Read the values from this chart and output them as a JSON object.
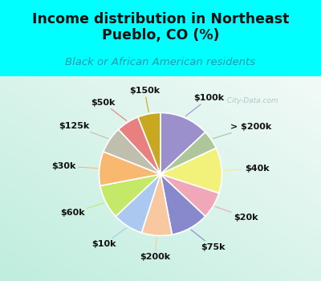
{
  "title": "Income distribution in Northeast\nPueblo, CO (%)",
  "subtitle": "Black or African American residents",
  "bg_cyan": "#00FFFF",
  "labels": [
    "$100k",
    "> $200k",
    "$40k",
    "$20k",
    "$75k",
    "$200k",
    "$10k",
    "$60k",
    "$30k",
    "$125k",
    "$50k",
    "$150k"
  ],
  "values": [
    13,
    5,
    12,
    7,
    10,
    8,
    8,
    9,
    9,
    7,
    6,
    6
  ],
  "colors": [
    "#9b8fcc",
    "#adc69a",
    "#f2f27a",
    "#f0a8b8",
    "#8888cc",
    "#f8c8a0",
    "#aac8f0",
    "#c4e868",
    "#f8b870",
    "#c0bfae",
    "#e88080",
    "#c8a820"
  ],
  "label_fontsize": 8,
  "title_fontsize": 12.5,
  "subtitle_fontsize": 9.5,
  "watermark": "  City-Data.com"
}
